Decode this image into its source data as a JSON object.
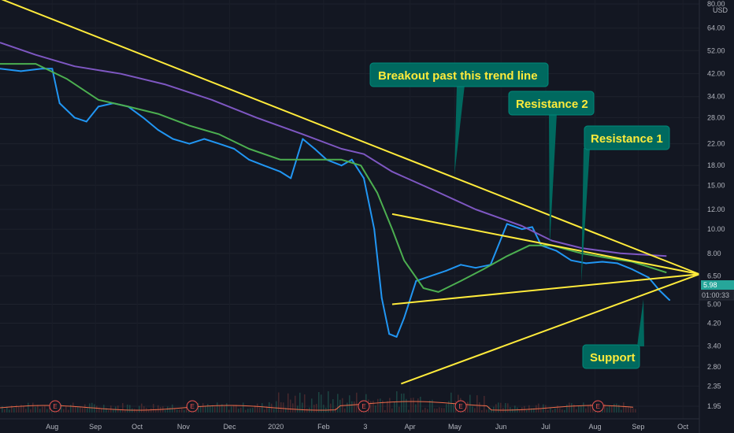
{
  "chart_data": {
    "type": "line",
    "chart_kind": "candlestick with moving averages and drawn trend lines",
    "y_scale": "log",
    "currency": "USD",
    "y_ticks": [
      "80.00",
      "64.00",
      "52.00",
      "42.00",
      "34.00",
      "28.00",
      "22.00",
      "18.00",
      "15.00",
      "12.00",
      "10.00",
      "8.00",
      "6.50",
      "5.00",
      "4.20",
      "3.40",
      "2.80",
      "2.35",
      "1.95"
    ],
    "y_tick_values": [
      80,
      64,
      52,
      42,
      34,
      28,
      22,
      18,
      15,
      12,
      10,
      8,
      6.5,
      5,
      4.2,
      3.4,
      2.8,
      2.35,
      1.95
    ],
    "x_ticks": [
      "Aug",
      "Sep",
      "Oct",
      "Nov",
      "Dec",
      "2020",
      "Feb",
      "3",
      "Apr",
      "May",
      "Jun",
      "Jul",
      "Aug",
      "Sep",
      "Oct"
    ],
    "last_price": "5.98",
    "countdown": "01:00:33",
    "earnings_markers": [
      {
        "label": "E",
        "date": "2019-08-07"
      },
      {
        "label": "E",
        "date": "2019-11-07"
      },
      {
        "label": "E",
        "date": "2020-03-01"
      },
      {
        "label": "E",
        "date": "2020-05-05"
      },
      {
        "label": "E",
        "date": "2020-08-05"
      }
    ],
    "series": [
      {
        "key": "price",
        "color": "#2196f3",
        "points": [
          [
            "2019-07-01",
            44
          ],
          [
            "2019-07-15",
            43
          ],
          [
            "2019-07-29",
            44
          ],
          [
            "2019-08-05",
            44
          ],
          [
            "2019-08-10",
            32
          ],
          [
            "2019-08-20",
            28
          ],
          [
            "2019-08-28",
            27
          ],
          [
            "2019-09-05",
            31
          ],
          [
            "2019-09-15",
            32
          ],
          [
            "2019-09-25",
            31
          ],
          [
            "2019-10-05",
            28
          ],
          [
            "2019-10-15",
            25
          ],
          [
            "2019-10-25",
            23
          ],
          [
            "2019-11-05",
            22
          ],
          [
            "2019-11-15",
            23
          ],
          [
            "2019-11-25",
            22
          ],
          [
            "2019-12-05",
            21
          ],
          [
            "2019-12-15",
            19
          ],
          [
            "2019-12-25",
            18
          ],
          [
            "2020-01-05",
            17
          ],
          [
            "2020-01-12",
            16
          ],
          [
            "2020-01-20",
            23
          ],
          [
            "2020-01-28",
            21
          ],
          [
            "2020-02-05",
            19
          ],
          [
            "2020-02-15",
            18
          ],
          [
            "2020-02-22",
            19
          ],
          [
            "2020-03-01",
            16
          ],
          [
            "2020-03-08",
            10
          ],
          [
            "2020-03-13",
            5.3
          ],
          [
            "2020-03-18",
            3.8
          ],
          [
            "2020-03-23",
            3.7
          ],
          [
            "2020-03-28",
            4.4
          ],
          [
            "2020-04-05",
            6.2
          ],
          [
            "2020-04-15",
            6.5
          ],
          [
            "2020-04-25",
            6.8
          ],
          [
            "2020-05-05",
            7.2
          ],
          [
            "2020-05-15",
            7.0
          ],
          [
            "2020-05-25",
            7.2
          ],
          [
            "2020-06-05",
            10.5
          ],
          [
            "2020-06-15",
            10.0
          ],
          [
            "2020-06-22",
            10.2
          ],
          [
            "2020-06-28",
            8.6
          ],
          [
            "2020-07-08",
            8.2
          ],
          [
            "2020-07-18",
            7.5
          ],
          [
            "2020-07-28",
            7.3
          ],
          [
            "2020-08-08",
            7.4
          ],
          [
            "2020-08-18",
            7.3
          ],
          [
            "2020-08-28",
            6.9
          ],
          [
            "2020-09-08",
            6.4
          ],
          [
            "2020-09-15",
            5.7
          ],
          [
            "2020-09-22",
            5.2
          ]
        ]
      },
      {
        "key": "ma_short",
        "color": "#4caf50",
        "points": [
          [
            "2019-07-01",
            46
          ],
          [
            "2019-07-25",
            46
          ],
          [
            "2019-08-15",
            40
          ],
          [
            "2019-09-05",
            33
          ],
          [
            "2019-09-25",
            31
          ],
          [
            "2019-10-15",
            29
          ],
          [
            "2019-11-05",
            26
          ],
          [
            "2019-11-25",
            24
          ],
          [
            "2019-12-15",
            21
          ],
          [
            "2020-01-05",
            19
          ],
          [
            "2020-01-25",
            19
          ],
          [
            "2020-02-15",
            19
          ],
          [
            "2020-02-28",
            18
          ],
          [
            "2020-03-10",
            14
          ],
          [
            "2020-03-20",
            10
          ],
          [
            "2020-03-28",
            7.5
          ],
          [
            "2020-04-10",
            5.8
          ],
          [
            "2020-04-20",
            5.6
          ],
          [
            "2020-05-05",
            6.2
          ],
          [
            "2020-05-20",
            6.9
          ],
          [
            "2020-06-05",
            7.8
          ],
          [
            "2020-06-20",
            8.6
          ],
          [
            "2020-07-05",
            8.6
          ],
          [
            "2020-07-25",
            8.0
          ],
          [
            "2020-08-15",
            7.6
          ],
          [
            "2020-08-28",
            7.4
          ],
          [
            "2020-09-10",
            7.0
          ],
          [
            "2020-09-20",
            6.7
          ]
        ]
      },
      {
        "key": "ma_long",
        "color": "#7e57c2",
        "points": [
          [
            "2019-07-01",
            56
          ],
          [
            "2019-07-25",
            50
          ],
          [
            "2019-08-20",
            45
          ],
          [
            "2019-09-20",
            42
          ],
          [
            "2019-10-20",
            38
          ],
          [
            "2019-11-20",
            33
          ],
          [
            "2019-12-20",
            28
          ],
          [
            "2020-01-20",
            24
          ],
          [
            "2020-02-15",
            21
          ],
          [
            "2020-03-01",
            20
          ],
          [
            "2020-03-20",
            17
          ],
          [
            "2020-04-15",
            14.5
          ],
          [
            "2020-05-15",
            12
          ],
          [
            "2020-06-15",
            10.3
          ],
          [
            "2020-07-05",
            9.0
          ],
          [
            "2020-07-25",
            8.4
          ],
          [
            "2020-08-20",
            8.0
          ],
          [
            "2020-09-20",
            7.8
          ]
        ]
      }
    ],
    "trend_lines": [
      {
        "color": "#ffeb3b",
        "from": [
          "2019-07-01",
          84
        ],
        "to": [
          "2020-10-12",
          6.6
        ]
      },
      {
        "color": "#ffeb3b",
        "from": [
          "2020-03-20",
          11.5
        ],
        "to": [
          "2020-10-12",
          6.6
        ]
      },
      {
        "color": "#ffeb3b",
        "from": [
          "2020-03-20",
          5.0
        ],
        "to": [
          "2020-10-12",
          6.6
        ]
      },
      {
        "color": "#ffeb3b",
        "from": [
          "2020-03-26",
          2.4
        ],
        "to": [
          "2020-10-12",
          6.6
        ]
      }
    ]
  },
  "callouts": {
    "breakout": "Breakout past this trend line",
    "resistance2": "Resistance 2",
    "resistance1": "Resistance 1",
    "support": "Support"
  }
}
